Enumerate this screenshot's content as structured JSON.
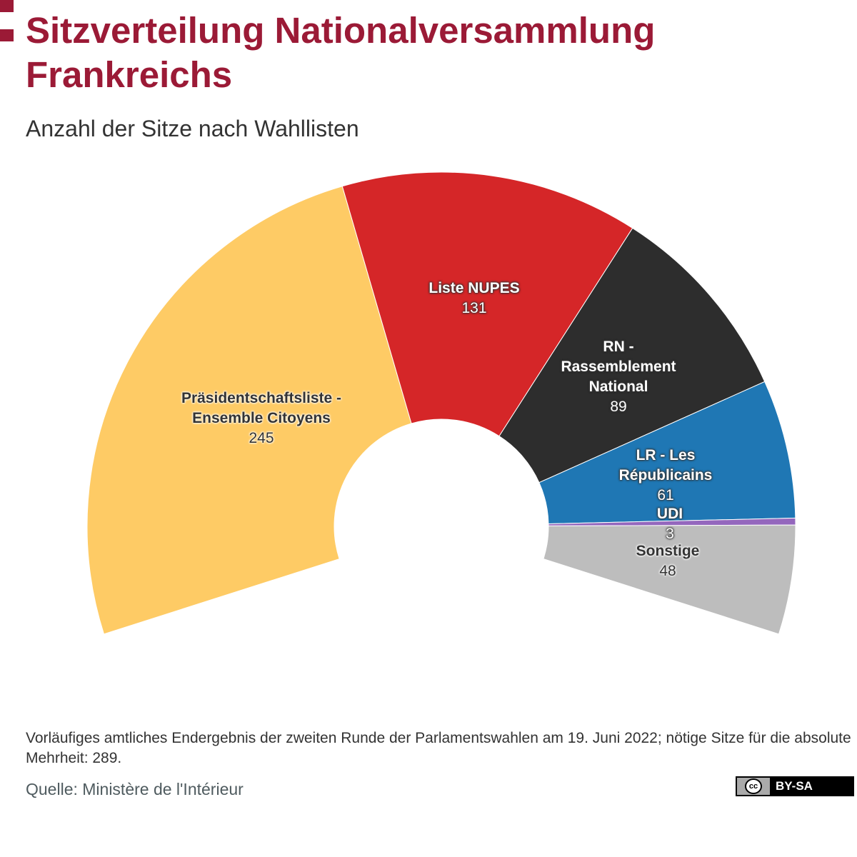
{
  "header": {
    "title": "Sitzverteilung Nationalversammlung Frankreichs",
    "subtitle": "Anzahl der Sitze nach Wahllisten"
  },
  "chart_data": {
    "type": "pie",
    "variant": "parliament-semicircle",
    "title": "Sitzverteilung Nationalversammlung Frankreichs",
    "subtitle": "Anzahl der Sitze nach Wahllisten",
    "total": 577,
    "slices": [
      {
        "label": "Präsidentschaftsliste - Ensemble Citoyens",
        "value": 245,
        "color": "#fecb65"
      },
      {
        "label": "Liste NUPES",
        "value": 131,
        "color": "#d52628"
      },
      {
        "label": "RN - Rassemblement National",
        "value": 89,
        "color": "#2d2d2d"
      },
      {
        "label": "LR - Les Républicains",
        "value": 61,
        "color": "#1f77b4"
      },
      {
        "label": "UDI",
        "value": 3,
        "color": "#9467bd"
      },
      {
        "label": "Sonstige",
        "value": 48,
        "color": "#bdbdbd"
      }
    ]
  },
  "footer": {
    "note": "Vorläufiges amtliches Endergebnis der zweiten Runde der Parlamentswahlen am 19. Juni 2022; nötige Sitze für die absolute Mehrheit: 289.",
    "source": "Quelle: Ministère de l'Intérieur",
    "license": "BY-SA",
    "license_icon": "cc"
  }
}
